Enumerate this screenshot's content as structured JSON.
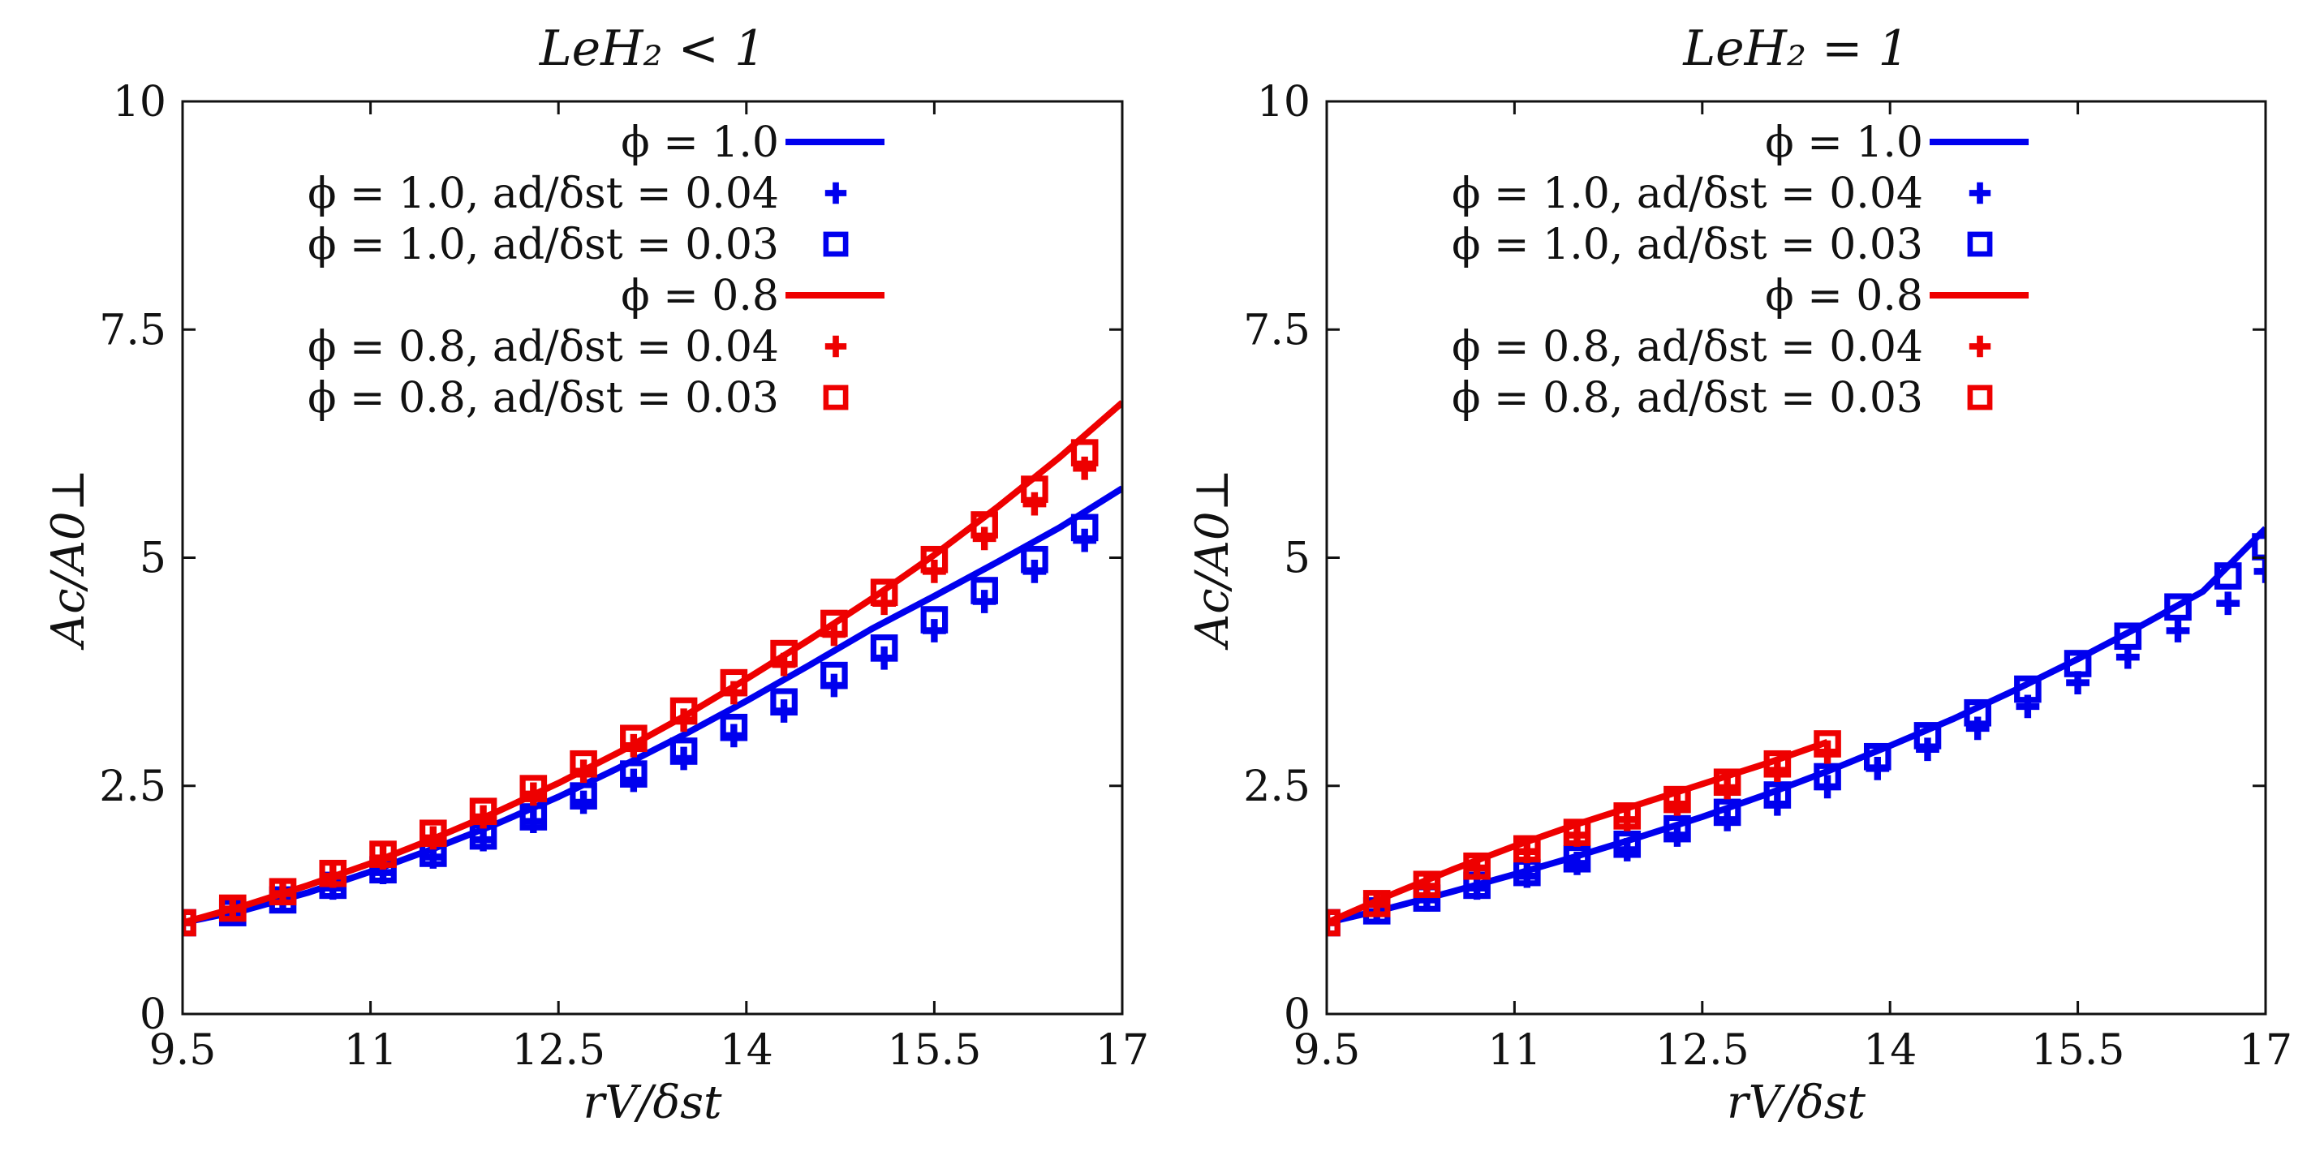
{
  "colors": {
    "blue": "#0000ee",
    "red": "#ee0000",
    "frame": "#111111"
  },
  "chart_data": [
    {
      "type": "line",
      "title": "LeH₂ < 1",
      "xlabel": "rV/δst",
      "ylabel": "Ac/A0⊥",
      "xlim": [
        9.5,
        17
      ],
      "ylim": [
        0,
        10
      ],
      "xticks": [
        "9.5",
        "11",
        "12.5",
        "14",
        "15.5",
        "17"
      ],
      "yticks": [
        "0",
        "2.5",
        "5",
        "7.5",
        "10"
      ],
      "grid": false,
      "legend_position": "top-left",
      "series": [
        {
          "name": "ϕ = 1.0",
          "kind": "line",
          "color": "#0000ee",
          "x": [
            9.5,
            10,
            10.5,
            11,
            11.5,
            12,
            12.5,
            13,
            13.5,
            14,
            14.5,
            15,
            15.5,
            16,
            16.5,
            17
          ],
          "y": [
            1.0,
            1.14,
            1.33,
            1.56,
            1.81,
            2.08,
            2.38,
            2.71,
            3.06,
            3.43,
            3.82,
            4.22,
            4.58,
            4.95,
            5.33,
            5.76
          ]
        },
        {
          "name": "ϕ = 1.0, ad/δst = 0.04",
          "kind": "plus",
          "color": "#0000ee",
          "x": [
            9.5,
            9.9,
            10.3,
            10.7,
            11.1,
            11.5,
            11.9,
            12.3,
            12.7,
            13.1,
            13.5,
            13.9,
            14.3,
            14.7,
            15.1,
            15.5,
            15.9,
            16.3,
            16.7
          ],
          "y": [
            1.0,
            1.1,
            1.23,
            1.38,
            1.55,
            1.72,
            1.91,
            2.11,
            2.32,
            2.56,
            2.8,
            3.05,
            3.32,
            3.6,
            3.9,
            4.2,
            4.52,
            4.85,
            5.19
          ]
        },
        {
          "name": "ϕ = 1.0, ad/δst = 0.03",
          "kind": "square",
          "color": "#0000ee",
          "x": [
            9.5,
            9.9,
            10.3,
            10.7,
            11.1,
            11.5,
            11.9,
            12.3,
            12.7,
            13.1,
            13.5,
            13.9,
            14.3,
            14.7,
            15.1,
            15.5,
            15.9,
            16.3,
            16.7
          ],
          "y": [
            1.0,
            1.11,
            1.25,
            1.41,
            1.58,
            1.76,
            1.95,
            2.16,
            2.39,
            2.63,
            2.88,
            3.14,
            3.42,
            3.71,
            4.01,
            4.32,
            4.64,
            4.98,
            5.33
          ]
        },
        {
          "name": "ϕ = 0.8",
          "kind": "line",
          "color": "#ee0000",
          "x": [
            9.5,
            10,
            10.5,
            11,
            11.5,
            12,
            12.5,
            13,
            13.5,
            14,
            14.5,
            15,
            15.5,
            16,
            16.5,
            17
          ],
          "y": [
            1.0,
            1.19,
            1.41,
            1.65,
            1.92,
            2.21,
            2.53,
            2.88,
            3.26,
            3.67,
            4.1,
            4.55,
            5.03,
            5.55,
            6.1,
            6.7
          ]
        },
        {
          "name": "ϕ = 0.8, ad/δst = 0.04",
          "kind": "plus",
          "color": "#ee0000",
          "x": [
            9.5,
            9.9,
            10.3,
            10.7,
            11.1,
            11.5,
            11.9,
            12.3,
            12.7,
            13.1,
            13.5,
            13.9,
            14.3,
            14.7,
            15.1,
            15.5,
            15.9,
            16.3,
            16.7
          ],
          "y": [
            1.0,
            1.15,
            1.32,
            1.51,
            1.71,
            1.93,
            2.16,
            2.41,
            2.66,
            2.94,
            3.22,
            3.52,
            3.83,
            4.16,
            4.5,
            4.85,
            5.21,
            5.59,
            5.98
          ]
        },
        {
          "name": "ϕ = 0.8, ad/δst = 0.03",
          "kind": "square",
          "color": "#ee0000",
          "x": [
            9.5,
            9.9,
            10.3,
            10.7,
            11.1,
            11.5,
            11.9,
            12.3,
            12.7,
            13.1,
            13.5,
            13.9,
            14.3,
            14.7,
            15.1,
            15.5,
            15.9,
            16.3,
            16.7
          ],
          "y": [
            1.0,
            1.16,
            1.34,
            1.54,
            1.75,
            1.98,
            2.22,
            2.47,
            2.74,
            3.02,
            3.32,
            3.63,
            3.95,
            4.28,
            4.62,
            4.98,
            5.36,
            5.75,
            6.15
          ]
        }
      ]
    },
    {
      "type": "line",
      "title": "LeH₂ = 1",
      "xlabel": "rV/δst",
      "ylabel": "Ac/A0⊥",
      "xlim": [
        9.5,
        17
      ],
      "ylim": [
        0,
        10
      ],
      "xticks": [
        "9.5",
        "11",
        "12.5",
        "14",
        "15.5",
        "17"
      ],
      "yticks": [
        "0",
        "2.5",
        "5",
        "7.5",
        "10"
      ],
      "grid": false,
      "legend_position": "top-right",
      "series": [
        {
          "name": "ϕ = 1.0",
          "kind": "line",
          "color": "#0000ee",
          "x": [
            9.5,
            10,
            10.5,
            11,
            11.5,
            12,
            12.5,
            13,
            13.5,
            14,
            14.5,
            15,
            15.5,
            16,
            16.5,
            17
          ],
          "y": [
            1.0,
            1.16,
            1.34,
            1.53,
            1.73,
            1.94,
            2.16,
            2.4,
            2.66,
            2.94,
            3.23,
            3.55,
            3.89,
            4.25,
            4.63,
            5.32
          ]
        },
        {
          "name": "ϕ = 1.0, ad/δst = 0.04",
          "kind": "plus",
          "color": "#0000ee",
          "x": [
            9.5,
            9.9,
            10.3,
            10.7,
            11.1,
            11.5,
            11.9,
            12.3,
            12.7,
            13.1,
            13.5,
            13.9,
            14.3,
            14.7,
            15.1,
            15.5,
            15.9,
            16.3,
            16.7,
            17
          ],
          "y": [
            1.0,
            1.12,
            1.25,
            1.38,
            1.51,
            1.65,
            1.8,
            1.96,
            2.13,
            2.3,
            2.49,
            2.69,
            2.9,
            3.13,
            3.37,
            3.63,
            3.91,
            4.2,
            4.5,
            4.85
          ]
        },
        {
          "name": "ϕ = 1.0, ad/δst = 0.03",
          "kind": "square",
          "color": "#0000ee",
          "x": [
            9.5,
            9.9,
            10.3,
            10.7,
            11.1,
            11.5,
            11.9,
            12.3,
            12.7,
            13.1,
            13.5,
            13.9,
            14.3,
            14.7,
            15.1,
            15.5,
            15.9,
            16.3,
            16.7,
            17
          ],
          "y": [
            1.0,
            1.13,
            1.27,
            1.41,
            1.55,
            1.7,
            1.86,
            2.03,
            2.21,
            2.4,
            2.6,
            2.82,
            3.05,
            3.3,
            3.56,
            3.84,
            4.14,
            4.46,
            4.8,
            5.12
          ]
        },
        {
          "name": "ϕ = 0.8",
          "kind": "line",
          "color": "#ee0000",
          "x": [
            9.5,
            10,
            10.5,
            11,
            11.5,
            12,
            12.5,
            13,
            13.5
          ],
          "y": [
            1.0,
            1.3,
            1.58,
            1.84,
            2.08,
            2.3,
            2.52,
            2.74,
            2.98
          ]
        },
        {
          "name": "ϕ = 0.8, ad/δst = 0.04",
          "kind": "plus",
          "color": "#ee0000",
          "x": [
            9.5,
            9.9,
            10.3,
            10.7,
            11.1,
            11.5,
            11.9,
            12.3,
            12.7,
            13.1,
            13.5
          ],
          "y": [
            1.0,
            1.2,
            1.4,
            1.6,
            1.78,
            1.96,
            2.13,
            2.3,
            2.48,
            2.67,
            2.87
          ]
        },
        {
          "name": "ϕ = 0.8, ad/δst = 0.03",
          "kind": "square",
          "color": "#ee0000",
          "x": [
            9.5,
            9.9,
            10.3,
            10.7,
            11.1,
            11.5,
            11.9,
            12.3,
            12.7,
            13.1,
            13.5
          ],
          "y": [
            1.0,
            1.21,
            1.42,
            1.62,
            1.81,
            1.99,
            2.17,
            2.35,
            2.54,
            2.74,
            2.96
          ]
        }
      ]
    }
  ]
}
